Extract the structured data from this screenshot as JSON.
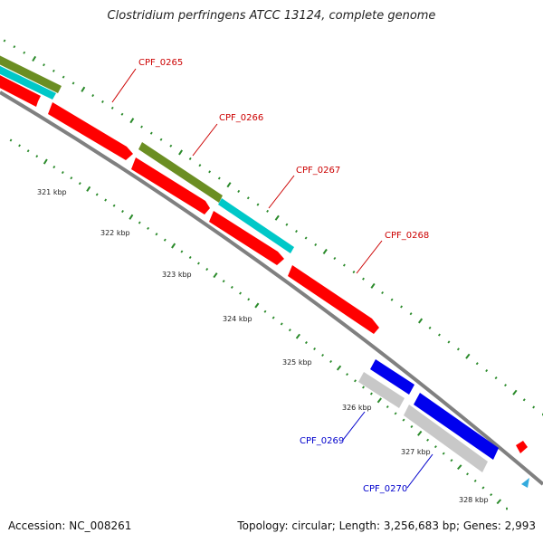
{
  "title": "Clostridium perfringens ATCC 13124, complete genome",
  "footer": {
    "accession": "Accession: NC_008261",
    "summary": "Topology: circular; Length: 3,256,683 bp; Genes: 2,993"
  },
  "colors": {
    "forward_cds": "#ff0000",
    "reverse_cds": "#0000ee",
    "olive_track": "#6b8e23",
    "cyan_track": "#00c8c8",
    "gray_track": "#c8c8c8",
    "backbone": "#808080",
    "ticks": "#2a8a2a",
    "forward_label": "#cc0000",
    "reverse_label": "#0000cc"
  },
  "kbp_labels": [
    "321 kbp",
    "322 kbp",
    "323 kbp",
    "324 kbp",
    "325 kbp",
    "326 kbp",
    "327 kbp",
    "328 kbp"
  ],
  "genes": [
    {
      "name": "CPF_0265",
      "strand": "forward"
    },
    {
      "name": "CPF_0266",
      "strand": "forward"
    },
    {
      "name": "CPF_0267",
      "strand": "forward"
    },
    {
      "name": "CPF_0268",
      "strand": "forward"
    },
    {
      "name": "CPF_0269",
      "strand": "reverse"
    },
    {
      "name": "CPF_0270",
      "strand": "reverse"
    }
  ]
}
